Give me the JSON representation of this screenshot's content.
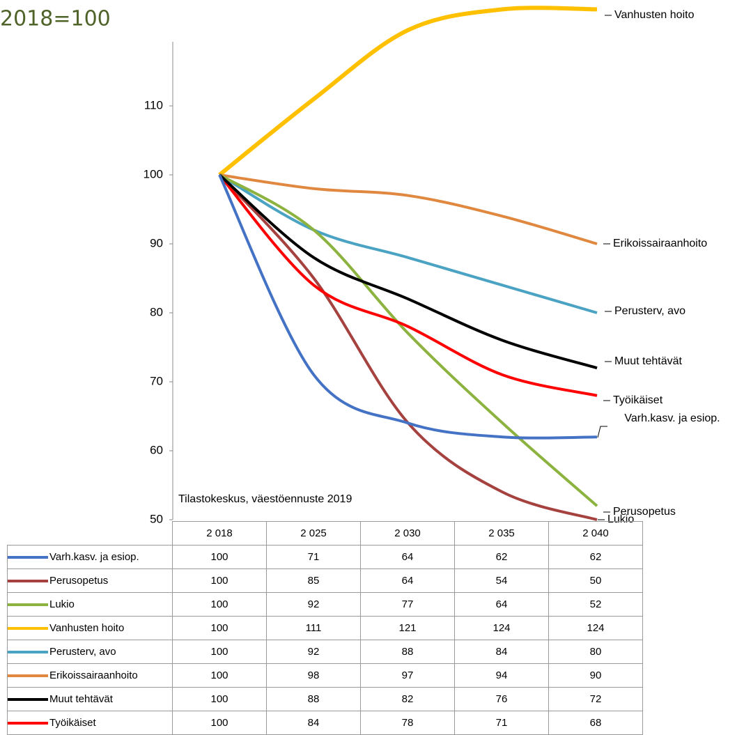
{
  "chart_data": {
    "type": "line",
    "title": "2018=100",
    "note": "Tilastokeskus, väestöennuste 2019",
    "categories": [
      "2 018",
      "2 025",
      "2 030",
      "2 035",
      "2 040"
    ],
    "ylim": [
      50,
      120
    ],
    "yticks": [
      50,
      60,
      70,
      80,
      90,
      100,
      110
    ],
    "series": [
      {
        "name": "Varh.kasv. ja esiop.",
        "color": "#4472c4",
        "values": [
          100,
          71,
          64,
          62,
          62
        ]
      },
      {
        "name": "Perusopetus",
        "color": "#a5423f",
        "values": [
          100,
          85,
          64,
          54,
          50
        ]
      },
      {
        "name": "Lukio",
        "color": "#8cb23f",
        "values": [
          100,
          92,
          77,
          64,
          52
        ]
      },
      {
        "name": "Vanhusten hoito",
        "color": "#ffc000",
        "values": [
          100,
          111,
          121,
          124,
          124
        ]
      },
      {
        "name": "Perusterv, avo",
        "color": "#4ba3c3",
        "values": [
          100,
          92,
          88,
          84,
          80
        ]
      },
      {
        "name": "Erikoissairaanhoito",
        "color": "#e0883f",
        "values": [
          100,
          98,
          97,
          94,
          90
        ]
      },
      {
        "name": "Muut tehtävät",
        "color": "#000000",
        "values": [
          100,
          88,
          82,
          76,
          72
        ]
      },
      {
        "name": "Työikäiset",
        "color": "#ff0000",
        "values": [
          100,
          84,
          78,
          71,
          68
        ]
      }
    ]
  }
}
